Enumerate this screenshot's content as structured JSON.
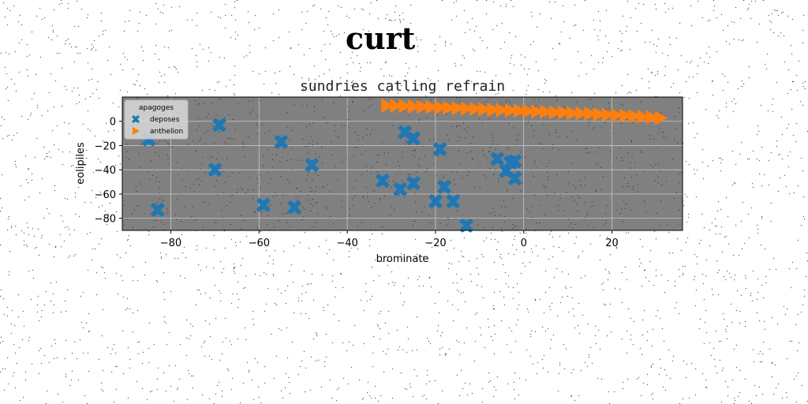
{
  "figure": {
    "suptitle": "curt"
  },
  "chart_data": {
    "type": "scatter",
    "title": "sundries catling refrain",
    "xlabel": "brominate",
    "ylabel": "eolipiles",
    "xlim": [
      -91,
      36
    ],
    "ylim": [
      -90,
      20
    ],
    "xticks": [
      -80,
      -60,
      -40,
      -20,
      0,
      20
    ],
    "yticks": [
      0,
      -20,
      -40,
      -60,
      -80
    ],
    "xtick_labels": [
      "−80",
      "−60",
      "−40",
      "−20",
      "0",
      "20"
    ],
    "ytick_labels": [
      "0",
      "−20",
      "−40",
      "−60",
      "−80"
    ],
    "grid": true,
    "background": "#808080",
    "legend": {
      "title": "apagoges",
      "placement": "top-left"
    },
    "series": [
      {
        "name": "deposes",
        "marker": "X",
        "color": "#1f77b4",
        "points": [
          {
            "x": -85,
            "y": -15
          },
          {
            "x": -83,
            "y": -73
          },
          {
            "x": -70,
            "y": -40
          },
          {
            "x": -69,
            "y": -3
          },
          {
            "x": -59,
            "y": -69
          },
          {
            "x": -55,
            "y": -17
          },
          {
            "x": -52,
            "y": -71
          },
          {
            "x": -48,
            "y": -36
          },
          {
            "x": -32,
            "y": -49
          },
          {
            "x": -28,
            "y": -56
          },
          {
            "x": -27,
            "y": -9
          },
          {
            "x": -25,
            "y": -51
          },
          {
            "x": -25,
            "y": -14
          },
          {
            "x": -20,
            "y": -66
          },
          {
            "x": -19,
            "y": -23
          },
          {
            "x": -18,
            "y": -54
          },
          {
            "x": -16,
            "y": -66
          },
          {
            "x": -13,
            "y": -86
          },
          {
            "x": -6,
            "y": -31
          },
          {
            "x": -4,
            "y": -41
          },
          {
            "x": -3,
            "y": -34
          },
          {
            "x": -2,
            "y": -33
          },
          {
            "x": -2,
            "y": -47
          }
        ]
      },
      {
        "name": "anthelion",
        "marker": ">",
        "color": "#ff7f0e",
        "points": [
          {
            "x": -31,
            "y": 13
          },
          {
            "x": -29,
            "y": 12.8
          },
          {
            "x": -27,
            "y": 12.5
          },
          {
            "x": -25,
            "y": 12.2
          },
          {
            "x": -23,
            "y": 12
          },
          {
            "x": -21,
            "y": 11.7
          },
          {
            "x": -19,
            "y": 11.4
          },
          {
            "x": -17,
            "y": 11.1
          },
          {
            "x": -15,
            "y": 10.8
          },
          {
            "x": -13,
            "y": 10.5
          },
          {
            "x": -11,
            "y": 10.2
          },
          {
            "x": -9,
            "y": 9.9
          },
          {
            "x": -7,
            "y": 9.6
          },
          {
            "x": -5,
            "y": 9.3
          },
          {
            "x": -3,
            "y": 9
          },
          {
            "x": -1,
            "y": 8.7
          },
          {
            "x": 1,
            "y": 8.4
          },
          {
            "x": 3,
            "y": 8.1
          },
          {
            "x": 5,
            "y": 7.8
          },
          {
            "x": 7,
            "y": 7.5
          },
          {
            "x": 9,
            "y": 7.2
          },
          {
            "x": 11,
            "y": 6.8
          },
          {
            "x": 13,
            "y": 6.5
          },
          {
            "x": 15,
            "y": 6.2
          },
          {
            "x": 17,
            "y": 5.8
          },
          {
            "x": 19,
            "y": 5.4
          },
          {
            "x": 21,
            "y": 5
          },
          {
            "x": 23,
            "y": 4.6
          },
          {
            "x": 25,
            "y": 4.2
          },
          {
            "x": 27,
            "y": 3.7
          },
          {
            "x": 29,
            "y": 3.2
          },
          {
            "x": 31,
            "y": 2.7
          }
        ]
      }
    ]
  }
}
